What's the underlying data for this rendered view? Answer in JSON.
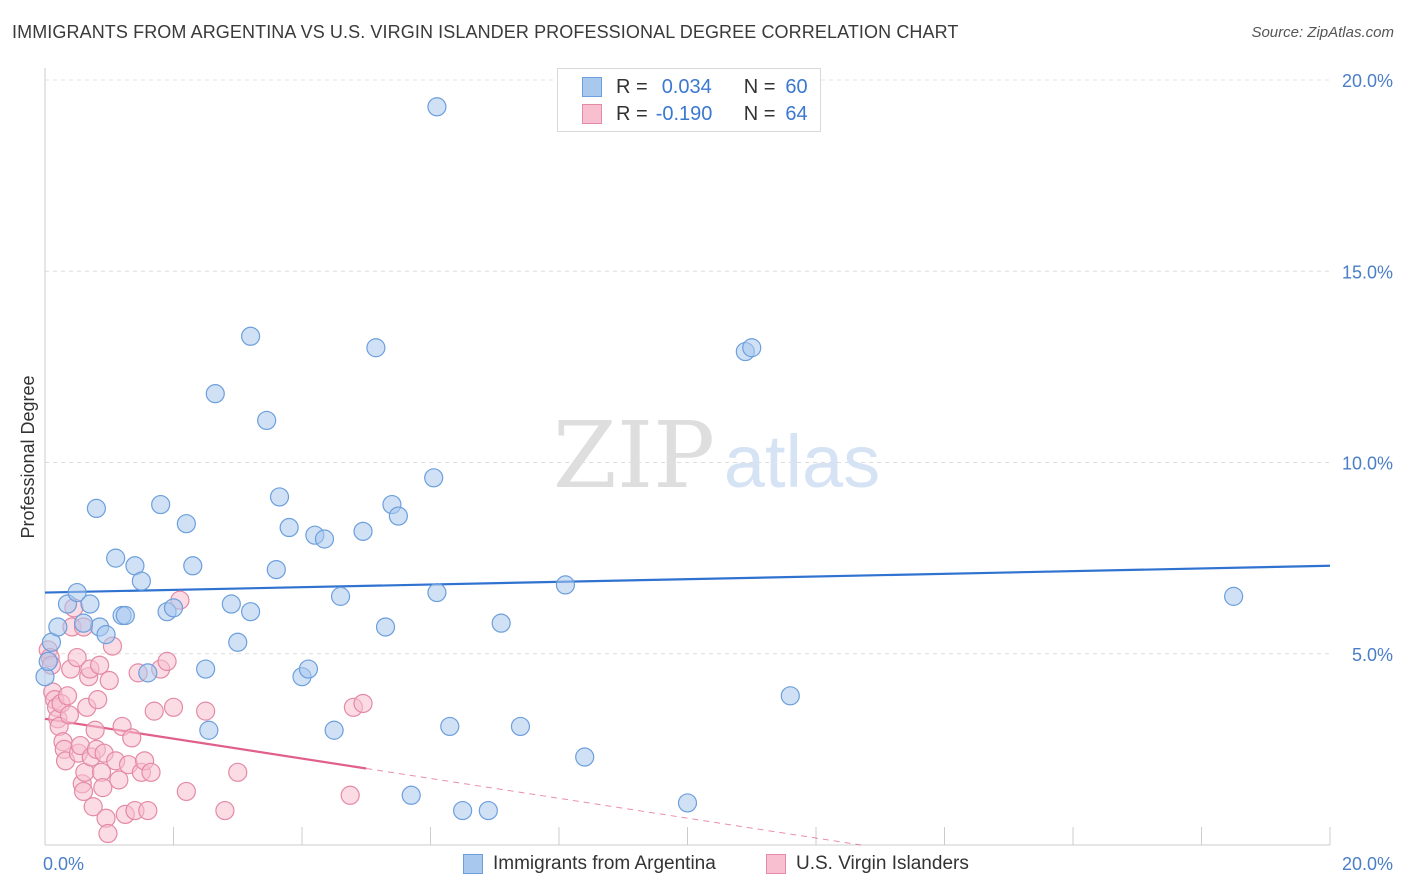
{
  "title": "IMMIGRANTS FROM ARGENTINA VS U.S. VIRGIN ISLANDER PROFESSIONAL DEGREE CORRELATION CHART",
  "source": "Source: ZipAtlas.com",
  "watermark": {
    "zip": "ZIP",
    "atlas": "atlas"
  },
  "legend": {
    "rows": [
      {
        "r_label": "R =",
        "r_value": "0.034",
        "n_label": "N =",
        "n_value": "60",
        "color": "#a9c8ee",
        "border": "#6c9fdc"
      },
      {
        "r_label": "R =",
        "r_value": "-0.190",
        "n_label": "N =",
        "n_value": "64",
        "color": "#f7bfd0",
        "border": "#e48aa6"
      }
    ]
  },
  "bottom_legend": [
    {
      "label": "Immigrants from Argentina",
      "color": "#a9c8ee",
      "border": "#6c9fdc"
    },
    {
      "label": "U.S. Virgin Islanders",
      "color": "#f7bfd0",
      "border": "#e48aa6"
    }
  ],
  "chart_data": {
    "type": "scatter",
    "xlabel": "",
    "ylabel": "Professional Degree",
    "xlim": [
      0,
      20
    ],
    "ylim": [
      0,
      20
    ],
    "x_tick_labels": [
      {
        "value": 0,
        "label": "0.0%"
      },
      {
        "value": 20,
        "label": "20.0%"
      }
    ],
    "y_tick_labels": [
      {
        "value": 5,
        "label": "5.0%"
      },
      {
        "value": 10,
        "label": "10.0%"
      },
      {
        "value": 15,
        "label": "15.0%"
      },
      {
        "value": 20,
        "label": "20.0%"
      }
    ],
    "grid": true,
    "series": [
      {
        "name": "Immigrants from Argentina",
        "color": "#a9c8ee",
        "stroke": "#6c9fdc",
        "trend": {
          "x0": 0,
          "y0": 6.6,
          "x1": 20,
          "y1": 7.3,
          "color": "#2f72d0"
        },
        "points": [
          [
            0.1,
            5.3
          ],
          [
            0.2,
            5.7
          ],
          [
            0.35,
            6.3
          ],
          [
            0.5,
            6.6
          ],
          [
            0.7,
            6.3
          ],
          [
            0.8,
            8.8
          ],
          [
            0.85,
            5.7
          ],
          [
            0.95,
            5.5
          ],
          [
            0.6,
            5.8
          ],
          [
            1.1,
            7.5
          ],
          [
            1.2,
            6.0
          ],
          [
            1.25,
            6.0
          ],
          [
            1.4,
            7.3
          ],
          [
            1.5,
            6.9
          ],
          [
            1.6,
            4.5
          ],
          [
            1.8,
            8.9
          ],
          [
            1.9,
            6.1
          ],
          [
            2.0,
            6.2
          ],
          [
            2.2,
            8.4
          ],
          [
            2.3,
            7.3
          ],
          [
            2.5,
            4.6
          ],
          [
            2.55,
            3.0
          ],
          [
            2.65,
            11.8
          ],
          [
            2.9,
            6.3
          ],
          [
            3.0,
            5.3
          ],
          [
            3.2,
            6.1
          ],
          [
            3.45,
            11.1
          ],
          [
            3.6,
            7.2
          ],
          [
            3.65,
            9.1
          ],
          [
            3.8,
            8.3
          ],
          [
            4.0,
            4.4
          ],
          [
            4.1,
            4.6
          ],
          [
            4.2,
            8.1
          ],
          [
            4.35,
            8.0
          ],
          [
            4.5,
            3.0
          ],
          [
            4.6,
            6.5
          ],
          [
            4.95,
            8.2
          ],
          [
            5.15,
            13.0
          ],
          [
            5.3,
            5.7
          ],
          [
            5.4,
            8.9
          ],
          [
            5.5,
            8.6
          ],
          [
            5.7,
            1.3
          ],
          [
            6.1,
            6.6
          ],
          [
            6.05,
            9.6
          ],
          [
            6.3,
            3.1
          ],
          [
            6.5,
            0.9
          ],
          [
            6.9,
            0.9
          ],
          [
            6.1,
            19.3
          ],
          [
            7.1,
            5.8
          ],
          [
            7.4,
            3.1
          ],
          [
            8.1,
            6.8
          ],
          [
            8.4,
            2.3
          ],
          [
            10.0,
            1.1
          ],
          [
            11.6,
            3.9
          ],
          [
            10.9,
            12.9
          ],
          [
            11.0,
            13.0
          ],
          [
            18.5,
            6.5
          ],
          [
            3.2,
            13.3
          ],
          [
            0.0,
            4.4
          ],
          [
            0.05,
            4.8
          ]
        ]
      },
      {
        "name": "U.S. Virgin Islanders",
        "color": "#f7bfd0",
        "stroke": "#e48aa6",
        "trend": {
          "x0": 0,
          "y0": 3.3,
          "x1": 5.0,
          "y1": 2.0,
          "x_dash_end": 12.7,
          "y_dash_end": 0.0,
          "color": "#e0608a"
        },
        "points": [
          [
            0.05,
            5.1
          ],
          [
            0.08,
            4.9
          ],
          [
            0.1,
            4.7
          ],
          [
            0.12,
            4.0
          ],
          [
            0.15,
            3.8
          ],
          [
            0.18,
            3.6
          ],
          [
            0.2,
            3.3
          ],
          [
            0.22,
            3.1
          ],
          [
            0.25,
            3.7
          ],
          [
            0.28,
            2.7
          ],
          [
            0.3,
            2.5
          ],
          [
            0.32,
            2.2
          ],
          [
            0.35,
            3.9
          ],
          [
            0.38,
            3.4
          ],
          [
            0.4,
            4.6
          ],
          [
            0.42,
            5.7
          ],
          [
            0.45,
            6.2
          ],
          [
            0.5,
            4.9
          ],
          [
            0.52,
            2.4
          ],
          [
            0.55,
            2.6
          ],
          [
            0.58,
            1.6
          ],
          [
            0.6,
            1.4
          ],
          [
            0.62,
            1.9
          ],
          [
            0.65,
            3.6
          ],
          [
            0.68,
            4.4
          ],
          [
            0.7,
            4.6
          ],
          [
            0.72,
            2.3
          ],
          [
            0.75,
            1.0
          ],
          [
            0.78,
            3.0
          ],
          [
            0.8,
            2.5
          ],
          [
            0.82,
            3.8
          ],
          [
            0.85,
            4.7
          ],
          [
            0.88,
            1.9
          ],
          [
            0.9,
            1.5
          ],
          [
            0.92,
            2.4
          ],
          [
            0.95,
            0.7
          ],
          [
            0.98,
            0.3
          ],
          [
            1.0,
            4.3
          ],
          [
            1.05,
            5.2
          ],
          [
            1.1,
            2.2
          ],
          [
            1.15,
            1.7
          ],
          [
            1.2,
            3.1
          ],
          [
            1.25,
            0.8
          ],
          [
            1.3,
            2.1
          ],
          [
            1.35,
            2.8
          ],
          [
            1.4,
            0.9
          ],
          [
            1.45,
            4.5
          ],
          [
            1.5,
            1.9
          ],
          [
            1.55,
            2.2
          ],
          [
            1.6,
            0.9
          ],
          [
            1.65,
            1.9
          ],
          [
            1.7,
            3.5
          ],
          [
            1.8,
            4.6
          ],
          [
            1.9,
            4.8
          ],
          [
            2.0,
            3.6
          ],
          [
            2.1,
            6.4
          ],
          [
            2.2,
            1.4
          ],
          [
            2.5,
            3.5
          ],
          [
            2.8,
            0.9
          ],
          [
            3.0,
            1.9
          ],
          [
            4.8,
            3.6
          ],
          [
            4.95,
            3.7
          ],
          [
            4.75,
            1.3
          ],
          [
            0.6,
            5.7
          ]
        ]
      }
    ]
  }
}
